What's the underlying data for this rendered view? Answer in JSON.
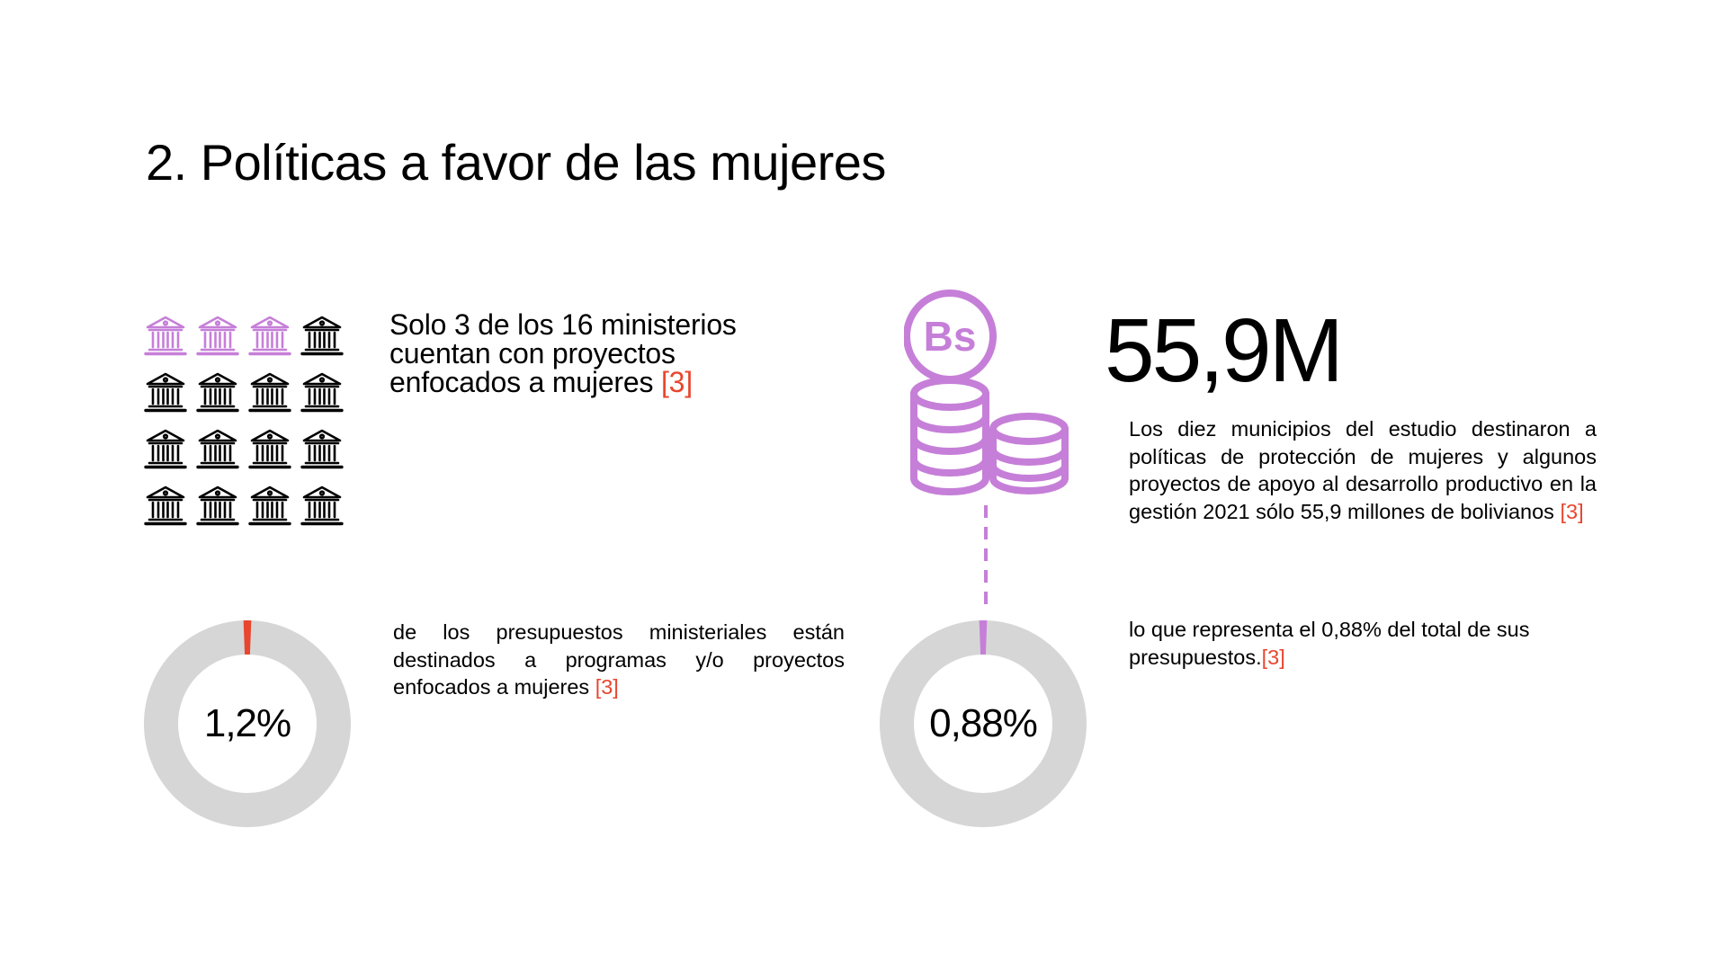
{
  "title": "2. Políticas a favor de las mujeres",
  "ministries": {
    "total": 16,
    "highlighted": 3,
    "icon": "government-building-icon",
    "text_main": "Solo 3 de los 16 ministerios cuentan con proyectos enfocados a mujeres",
    "ref": "[3]"
  },
  "municipal_amount": {
    "icon": "bolivianos-coins-icon",
    "coin_symbol": "Bs",
    "value": "55,9M",
    "text_main": "Los diez municipios del estudio destinaron a políticas de protección de mujeres y algunos proyectos de apoyo al desarrollo productivo en la gestión 2021 sólo 55,9 millones de bolivianos",
    "ref": "[3]"
  },
  "ministry_budget": {
    "percent_label": "1,2%",
    "percent_value": 1.2,
    "text_main": "de los presupuestos ministeriales están destinados a programas y/o proyectos enfocados a mujeres",
    "ref": "[3]"
  },
  "municipal_budget": {
    "percent_label": "0,88%",
    "percent_value": 0.88,
    "text_main": "lo que representa el 0,88% del total de sus presupuestos.",
    "ref": "[3]"
  },
  "colors": {
    "accent_purple": "#c67fd8",
    "ref_red": "#e8462f",
    "donut_gray": "#d6d6d6",
    "text": "#000000"
  }
}
